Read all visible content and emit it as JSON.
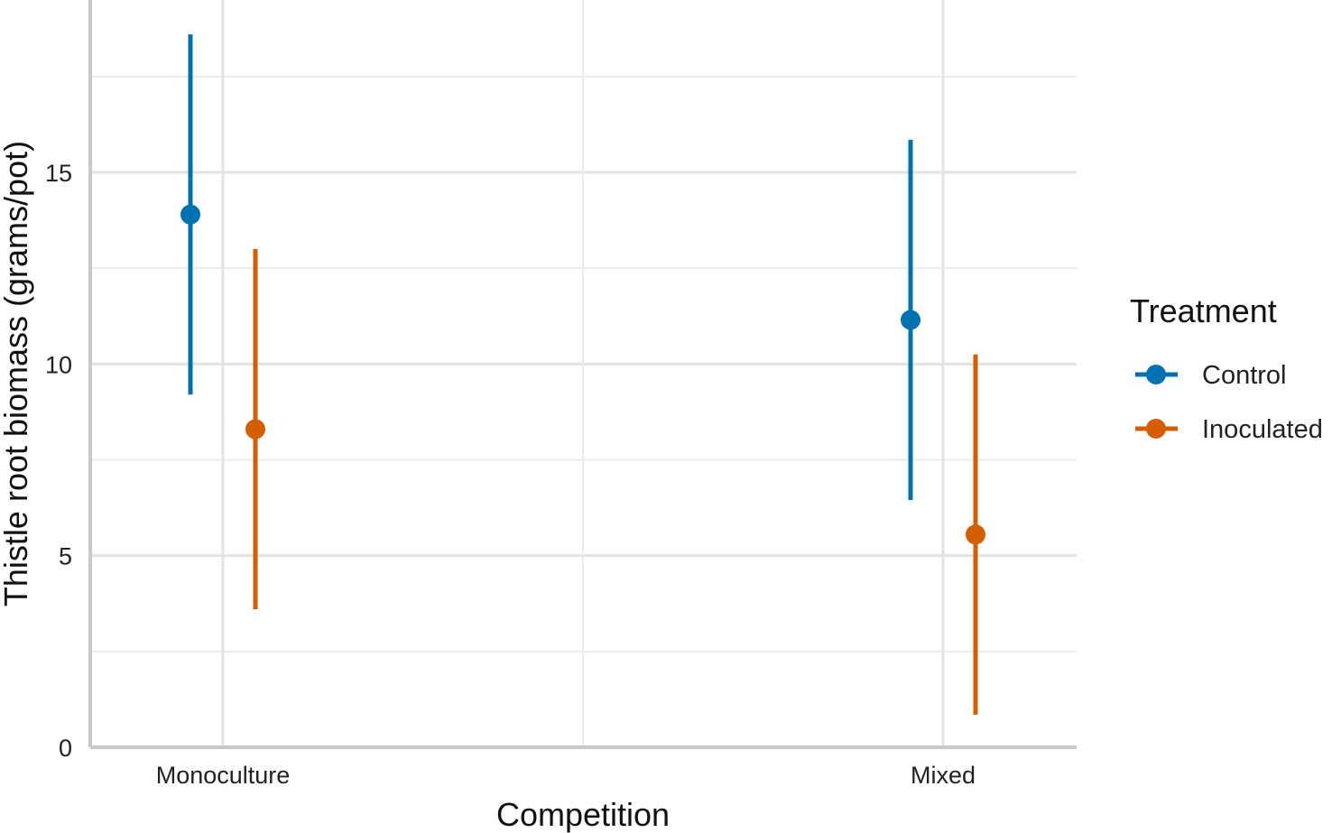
{
  "chart_data": {
    "type": "pointrange",
    "xlabel": "Competition",
    "ylabel": "Thistle root biomass (grams/pot)",
    "categories": [
      "Monoculture",
      "Mixed"
    ],
    "ylim": [
      0,
      18.8
    ],
    "yticks": [
      0,
      5,
      10,
      15
    ],
    "legend": {
      "title": "Treatment",
      "placement": "right"
    },
    "series": [
      {
        "name": "Control",
        "color": "#0072B2",
        "points": [
          {
            "category": "Monoculture",
            "y": 13.9,
            "ymin": 9.2,
            "ymax": 18.6
          },
          {
            "category": "Mixed",
            "y": 11.15,
            "ymin": 6.45,
            "ymax": 15.85
          }
        ]
      },
      {
        "name": "Inoculated",
        "color": "#D55E00",
        "points": [
          {
            "category": "Monoculture",
            "y": 8.3,
            "ymin": 3.6,
            "ymax": 13.0
          },
          {
            "category": "Mixed",
            "y": 5.55,
            "ymin": 0.85,
            "ymax": 10.25
          }
        ]
      }
    ],
    "grid": true
  }
}
